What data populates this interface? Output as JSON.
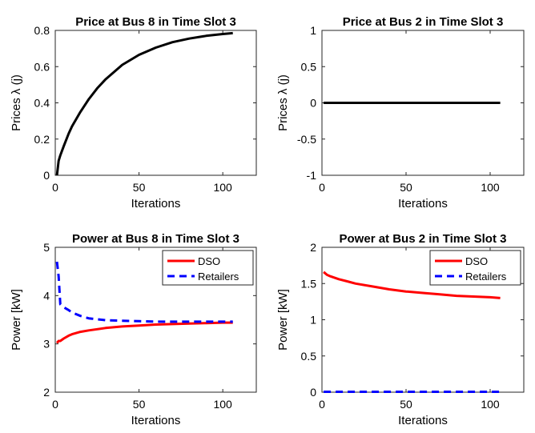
{
  "chart_data": [
    {
      "type": "line",
      "title": "Price at Bus 8 in Time Slot 3",
      "xlabel": "Iterations",
      "ylabel": "Prices λ (j)",
      "xlim": [
        0,
        120
      ],
      "ylim": [
        0,
        0.8
      ],
      "xticks": [
        0,
        50,
        100
      ],
      "yticks": [
        0,
        0.2,
        0.4,
        0.6,
        0.8
      ],
      "xtick_labels": [
        "0",
        "50",
        "100"
      ],
      "ytick_labels": [
        "0",
        "0.2",
        "0.4",
        "0.6",
        "0.8"
      ],
      "series": [
        {
          "color": "#000000",
          "dashed": false,
          "x": [
            1,
            2,
            3,
            5,
            8,
            10,
            15,
            20,
            25,
            30,
            40,
            50,
            60,
            70,
            80,
            90,
            100,
            106
          ],
          "y": [
            0.0,
            0.08,
            0.11,
            0.16,
            0.23,
            0.27,
            0.35,
            0.42,
            0.48,
            0.53,
            0.61,
            0.665,
            0.705,
            0.735,
            0.755,
            0.77,
            0.78,
            0.785
          ]
        }
      ]
    },
    {
      "type": "line",
      "title": "Price at Bus 2 in Time Slot 3",
      "xlabel": "Iterations",
      "ylabel": "Prices λ (j)",
      "xlim": [
        0,
        120
      ],
      "ylim": [
        -1,
        1
      ],
      "xticks": [
        0,
        50,
        100
      ],
      "yticks": [
        -1,
        -0.5,
        0,
        0.5,
        1
      ],
      "xtick_labels": [
        "0",
        "50",
        "100"
      ],
      "ytick_labels": [
        "-1",
        "-0.5",
        "0",
        "0.5",
        "1"
      ],
      "series": [
        {
          "color": "#000000",
          "dashed": false,
          "x": [
            1,
            106
          ],
          "y": [
            0,
            0
          ]
        }
      ]
    },
    {
      "type": "line",
      "title": "Power at Bus 8 in Time Slot 3",
      "xlabel": "Iterations",
      "ylabel": "Power [kW]",
      "xlim": [
        0,
        120
      ],
      "ylim": [
        2,
        5
      ],
      "xticks": [
        0,
        50,
        100
      ],
      "yticks": [
        2,
        3,
        4,
        5
      ],
      "xtick_labels": [
        "0",
        "50",
        "100"
      ],
      "ytick_labels": [
        "2",
        "3",
        "4",
        "5"
      ],
      "legend": "top-right",
      "series": [
        {
          "name": "DSO",
          "color": "#ff0000",
          "dashed": false,
          "x": [
            1,
            2,
            3,
            5,
            8,
            10,
            15,
            20,
            30,
            40,
            50,
            60,
            70,
            80,
            90,
            100,
            106
          ],
          "y": [
            3.02,
            3.06,
            3.06,
            3.11,
            3.17,
            3.2,
            3.25,
            3.28,
            3.33,
            3.36,
            3.38,
            3.4,
            3.41,
            3.42,
            3.43,
            3.44,
            3.44
          ]
        },
        {
          "name": "Retailers",
          "color": "#0000ff",
          "dashed": true,
          "x": [
            1,
            2,
            3,
            5,
            8,
            10,
            15,
            20,
            30,
            40,
            50,
            60,
            70,
            80,
            90,
            100,
            106
          ],
          "y": [
            4.7,
            4.4,
            3.82,
            3.76,
            3.7,
            3.65,
            3.58,
            3.53,
            3.49,
            3.48,
            3.47,
            3.46,
            3.46,
            3.46,
            3.46,
            3.46,
            3.46
          ]
        }
      ]
    },
    {
      "type": "line",
      "title": "Power at Bus 2 in Time Slot 3",
      "xlabel": "Iterations",
      "ylabel": "Power [kW]",
      "xlim": [
        0,
        120
      ],
      "ylim": [
        0,
        2
      ],
      "xticks": [
        0,
        50,
        100
      ],
      "yticks": [
        0,
        0.5,
        1,
        1.5,
        2
      ],
      "xtick_labels": [
        "0",
        "50",
        "100"
      ],
      "ytick_labels": [
        "0",
        "0.5",
        "1",
        "1.5",
        "2"
      ],
      "legend": "top-right",
      "series": [
        {
          "name": "DSO",
          "color": "#ff0000",
          "dashed": false,
          "x": [
            1,
            3,
            5,
            10,
            15,
            20,
            30,
            40,
            50,
            60,
            70,
            80,
            90,
            100,
            106
          ],
          "y": [
            1.66,
            1.62,
            1.6,
            1.56,
            1.53,
            1.5,
            1.46,
            1.42,
            1.39,
            1.37,
            1.35,
            1.33,
            1.32,
            1.31,
            1.3
          ]
        },
        {
          "name": "Retailers",
          "color": "#0000ff",
          "dashed": true,
          "x": [
            1,
            106
          ],
          "y": [
            0.005,
            0.005
          ]
        }
      ]
    }
  ]
}
